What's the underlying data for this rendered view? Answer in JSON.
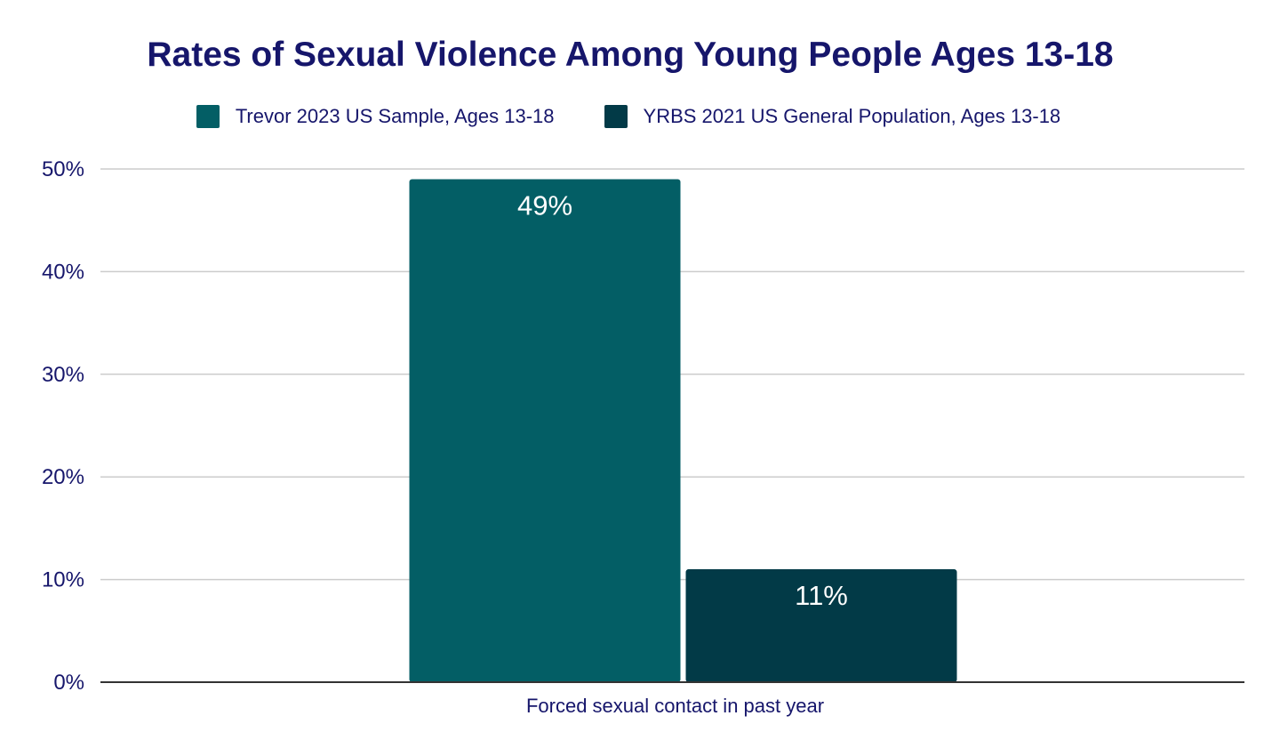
{
  "chart_data": {
    "type": "bar",
    "title": "Rates of Sexual Violence Among Young People Ages 13-18",
    "xlabel": "",
    "ylabel": "",
    "categories": [
      "Forced sexual contact in past year"
    ],
    "series": [
      {
        "name": "Trevor 2023 US Sample, Ages 13-18",
        "values": [
          49
        ],
        "labels": [
          "49%"
        ],
        "color": "#035e65"
      },
      {
        "name": "YRBS 2021 US General Population, Ages 13-18",
        "values": [
          11
        ],
        "labels": [
          "11%"
        ],
        "color": "#023a47"
      }
    ],
    "ylim": [
      0,
      50
    ],
    "yticks": [
      0,
      10,
      20,
      30,
      40,
      50
    ],
    "ytick_labels": [
      "0%",
      "10%",
      "20%",
      "30%",
      "40%",
      "50%"
    ],
    "grid": true,
    "legend": "top-center",
    "colors": {
      "title": "#16166b",
      "text": "#16166b",
      "grid": "#cccccc",
      "axis": "#333333"
    }
  }
}
